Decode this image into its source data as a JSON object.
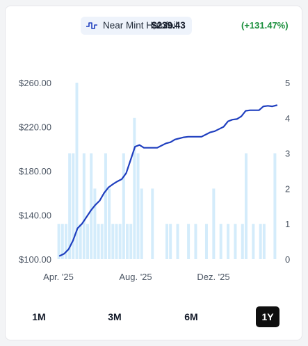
{
  "legend": {
    "name": "Near Mint Holofoil",
    "price": "$239.43",
    "change": "(+131.47%)",
    "icon": "line-chart-icon",
    "line_color": "#1f3fbf",
    "bar_color": "#d4ecfb",
    "change_color": "#1a8f3c"
  },
  "ranges": [
    "1M",
    "3M",
    "6M",
    "1Y"
  ],
  "active_range": "1Y",
  "chart_data": {
    "type": "line",
    "title": "",
    "y_left": {
      "ticks": [
        "$100.00",
        "$140.00",
        "$180.00",
        "$220.00",
        "$260.00"
      ],
      "range": [
        100,
        260
      ]
    },
    "y_right": {
      "ticks": [
        "0",
        "1",
        "2",
        "3",
        "4",
        "5"
      ],
      "range": [
        0,
        5
      ]
    },
    "x_ticks": [
      "Apr. '25",
      "Aug. '25",
      "Dez. '25"
    ],
    "grid": false,
    "series": [
      {
        "kind": "line",
        "axis": "left",
        "values": [
          103.0,
          105.0,
          109.0,
          117.0,
          128.0,
          132.0,
          138.0,
          144.0,
          149.0,
          153.0,
          160.0,
          165.0,
          168.0,
          170.5,
          172.5,
          178.0,
          190.0,
          202.0,
          203.5,
          201.0,
          201.0,
          201.0,
          201.0,
          203.0,
          205.0,
          206.0,
          208.5,
          209.5,
          210.5,
          211.0,
          211.0,
          211.0,
          211.0,
          213.0,
          215.0,
          216.0,
          218.0,
          220.0,
          225.0,
          226.5,
          227.0,
          229.5,
          234.5,
          235.0,
          235.0,
          235.0,
          238.5,
          239.0,
          238.5,
          239.5
        ]
      },
      {
        "kind": "bar",
        "axis": "right",
        "values": [
          1,
          1,
          1,
          3,
          3,
          5,
          1,
          3,
          1,
          3,
          2,
          1,
          1,
          3,
          2,
          1,
          1,
          1,
          3,
          1,
          1,
          4,
          3,
          2,
          0,
          0,
          2,
          0,
          0,
          0,
          1,
          1,
          0,
          1,
          0,
          0,
          1,
          0,
          1,
          0,
          0,
          1,
          0,
          2,
          0,
          1,
          0,
          1,
          0,
          1,
          0,
          1,
          3,
          0,
          1,
          0,
          1,
          1,
          0,
          0,
          3
        ]
      }
    ]
  }
}
